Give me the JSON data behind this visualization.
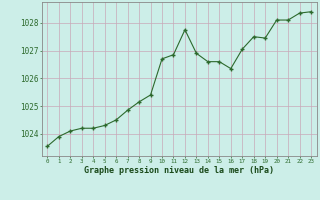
{
  "hours": [
    0,
    1,
    2,
    3,
    4,
    5,
    6,
    7,
    8,
    9,
    10,
    11,
    12,
    13,
    14,
    15,
    16,
    17,
    18,
    19,
    20,
    21,
    22,
    23
  ],
  "pressure": [
    1023.55,
    1023.9,
    1024.1,
    1024.2,
    1024.2,
    1024.3,
    1024.5,
    1024.85,
    1025.15,
    1025.4,
    1026.7,
    1026.85,
    1027.75,
    1026.9,
    1026.6,
    1026.6,
    1026.35,
    1027.05,
    1027.5,
    1027.45,
    1028.1,
    1028.1,
    1028.35,
    1028.4
  ],
  "line_color": "#2d6a2d",
  "marker_color": "#2d6a2d",
  "bg_color": "#cceee8",
  "grid_color": "#b0d8d0",
  "xlabel": "Graphe pression niveau de la mer (hPa)",
  "xlabel_color": "#1a4a1a",
  "ylabel_ticks": [
    1024,
    1025,
    1026,
    1027,
    1028
  ],
  "ylim": [
    1023.2,
    1028.75
  ],
  "xlim": [
    -0.5,
    23.5
  ],
  "tick_color": "#2d6a2d",
  "axis_color": "#888888"
}
